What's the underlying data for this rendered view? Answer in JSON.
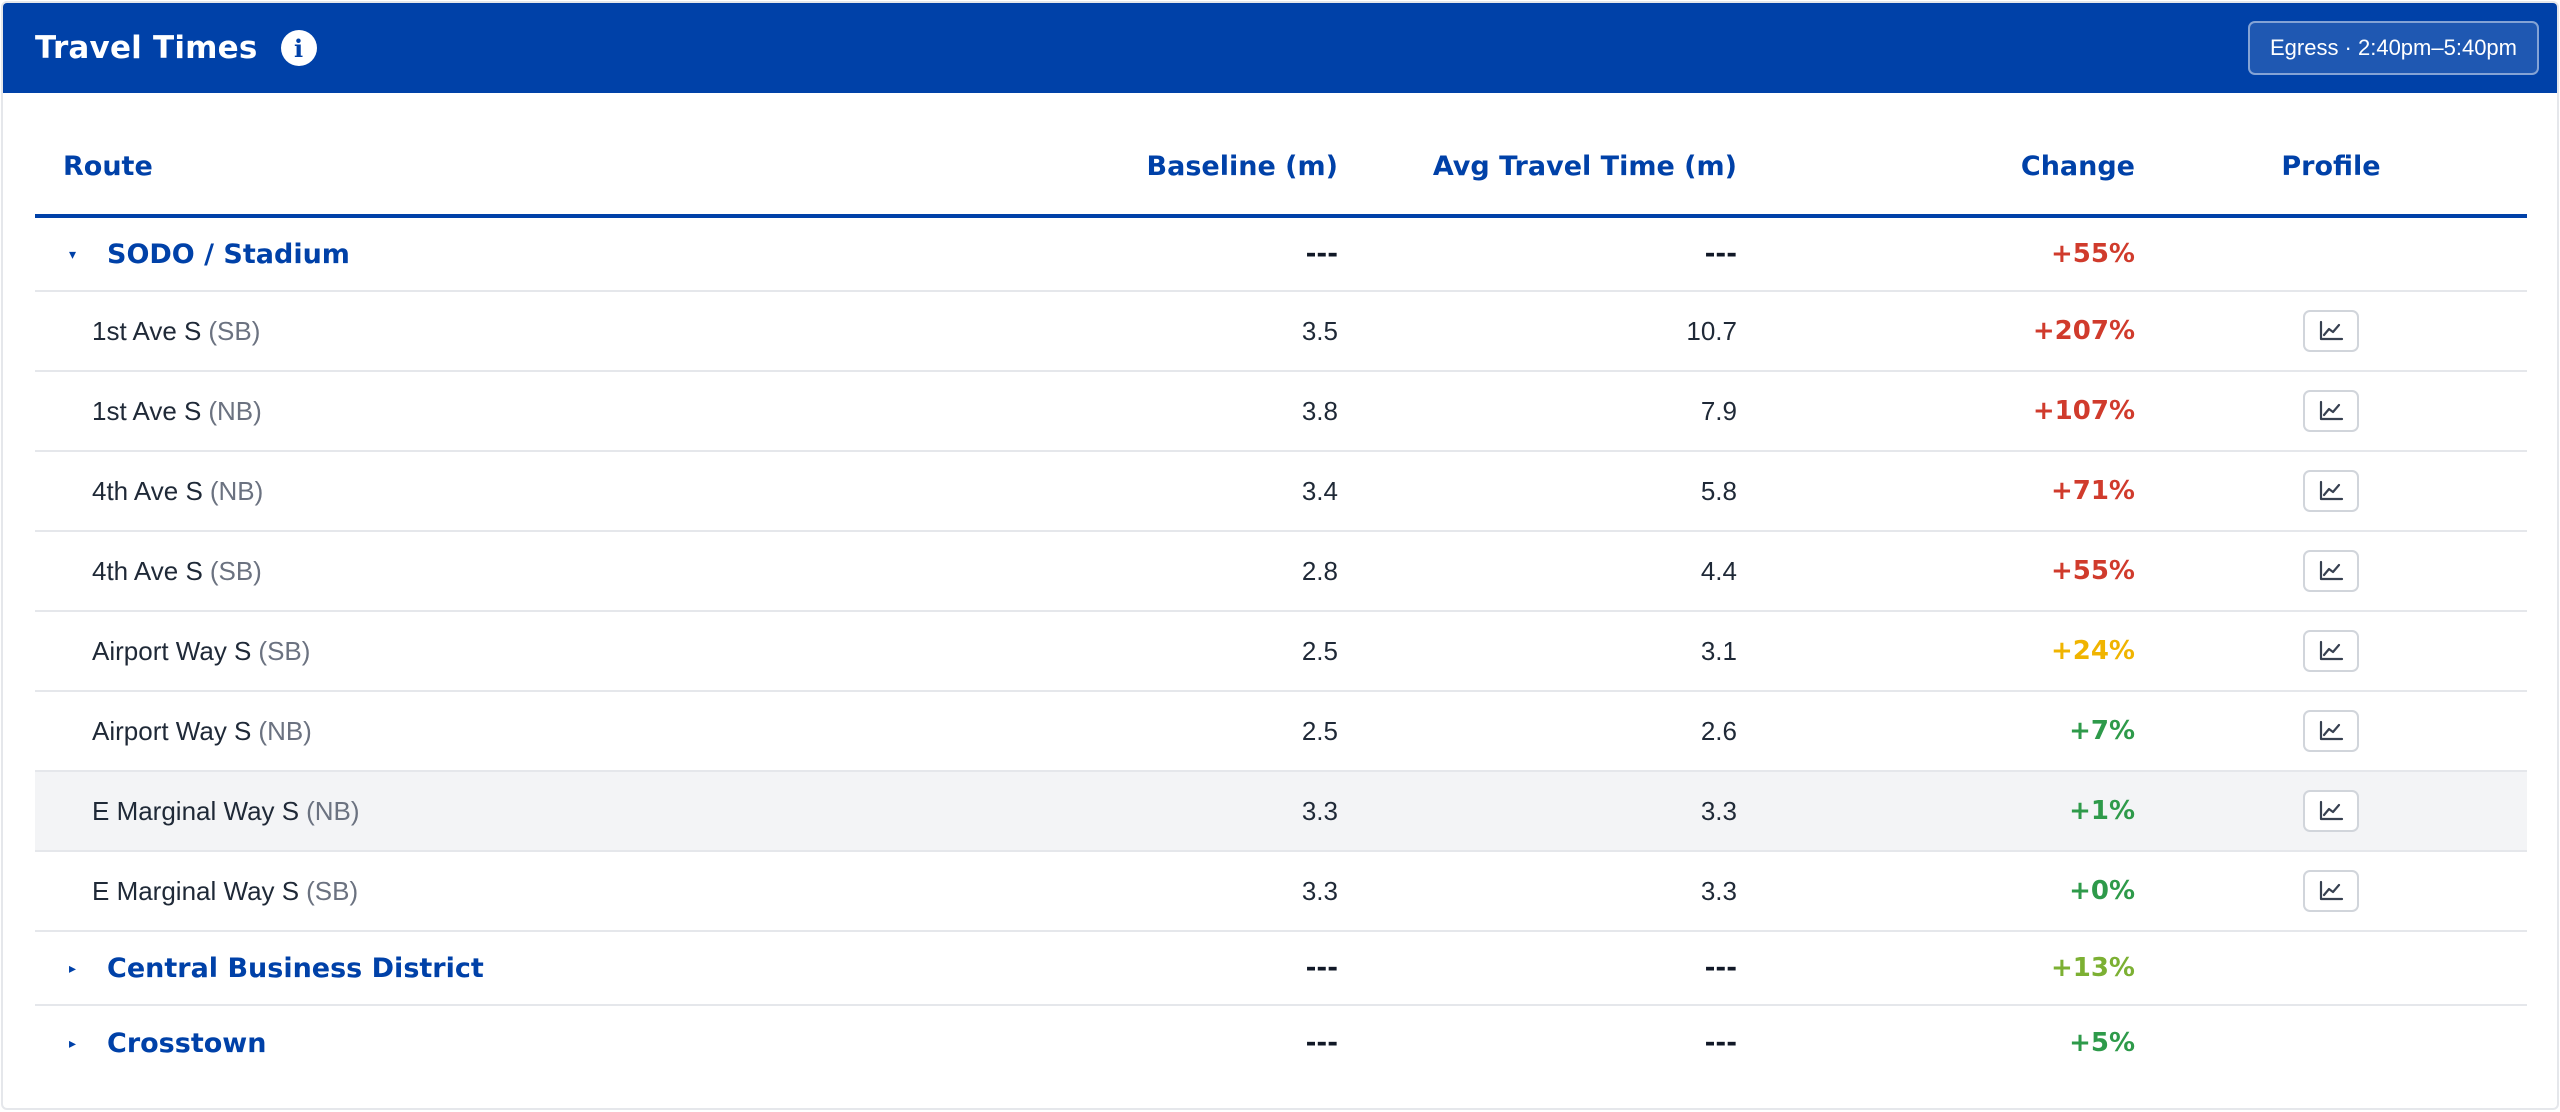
{
  "header": {
    "title": "Travel Times",
    "info_icon": "info-icon",
    "window_label": "Egress · 2:40pm–5:40pm"
  },
  "table": {
    "columns": {
      "route": "Route",
      "baseline": "Baseline (m)",
      "avg": "Avg Travel Time (m)",
      "change": "Change",
      "profile": "Profile"
    },
    "groups": [
      {
        "name": "SODO / Stadium",
        "expanded": true,
        "caret": "▾",
        "baseline": "---",
        "avg": "---",
        "change": "+55%",
        "change_color": "#d03b2c",
        "routes": [
          {
            "name": "1st Ave S",
            "dir": "(SB)",
            "baseline": "3.5",
            "avg": "10.7",
            "change": "+207%",
            "change_color": "#d03b2c",
            "highlighted": false
          },
          {
            "name": "1st Ave S",
            "dir": "(NB)",
            "baseline": "3.8",
            "avg": "7.9",
            "change": "+107%",
            "change_color": "#d03b2c",
            "highlighted": false
          },
          {
            "name": "4th Ave S",
            "dir": "(NB)",
            "baseline": "3.4",
            "avg": "5.8",
            "change": "+71%",
            "change_color": "#d03b2c",
            "highlighted": false
          },
          {
            "name": "4th Ave S",
            "dir": "(SB)",
            "baseline": "2.8",
            "avg": "4.4",
            "change": "+55%",
            "change_color": "#d03b2c",
            "highlighted": false
          },
          {
            "name": "Airport Way S",
            "dir": "(SB)",
            "baseline": "2.5",
            "avg": "3.1",
            "change": "+24%",
            "change_color": "#f0b400",
            "highlighted": false
          },
          {
            "name": "Airport Way S",
            "dir": "(NB)",
            "baseline": "2.5",
            "avg": "2.6",
            "change": "+7%",
            "change_color": "#2e9a4a",
            "highlighted": false
          },
          {
            "name": "E Marginal Way S",
            "dir": "(NB)",
            "baseline": "3.3",
            "avg": "3.3",
            "change": "+1%",
            "change_color": "#2e9a4a",
            "highlighted": true
          },
          {
            "name": "E Marginal Way S",
            "dir": "(SB)",
            "baseline": "3.3",
            "avg": "3.3",
            "change": "+0%",
            "change_color": "#2e9a4a",
            "highlighted": false
          }
        ]
      },
      {
        "name": "Central Business District",
        "expanded": false,
        "caret": "▸",
        "baseline": "---",
        "avg": "---",
        "change": "+13%",
        "change_color": "#7cb033",
        "routes": []
      },
      {
        "name": "Crosstown",
        "expanded": false,
        "caret": "▸",
        "baseline": "---",
        "avg": "---",
        "change": "+5%",
        "change_color": "#2e9a4a",
        "routes": []
      }
    ],
    "profile_icon": "line-chart-icon"
  },
  "colors": {
    "brand": "#0041a8",
    "red": "#d03b2c",
    "amber": "#f0b400",
    "yellow_green": "#7cb033",
    "green": "#2e9a4a",
    "highlight_row": "#f3f4f6"
  }
}
